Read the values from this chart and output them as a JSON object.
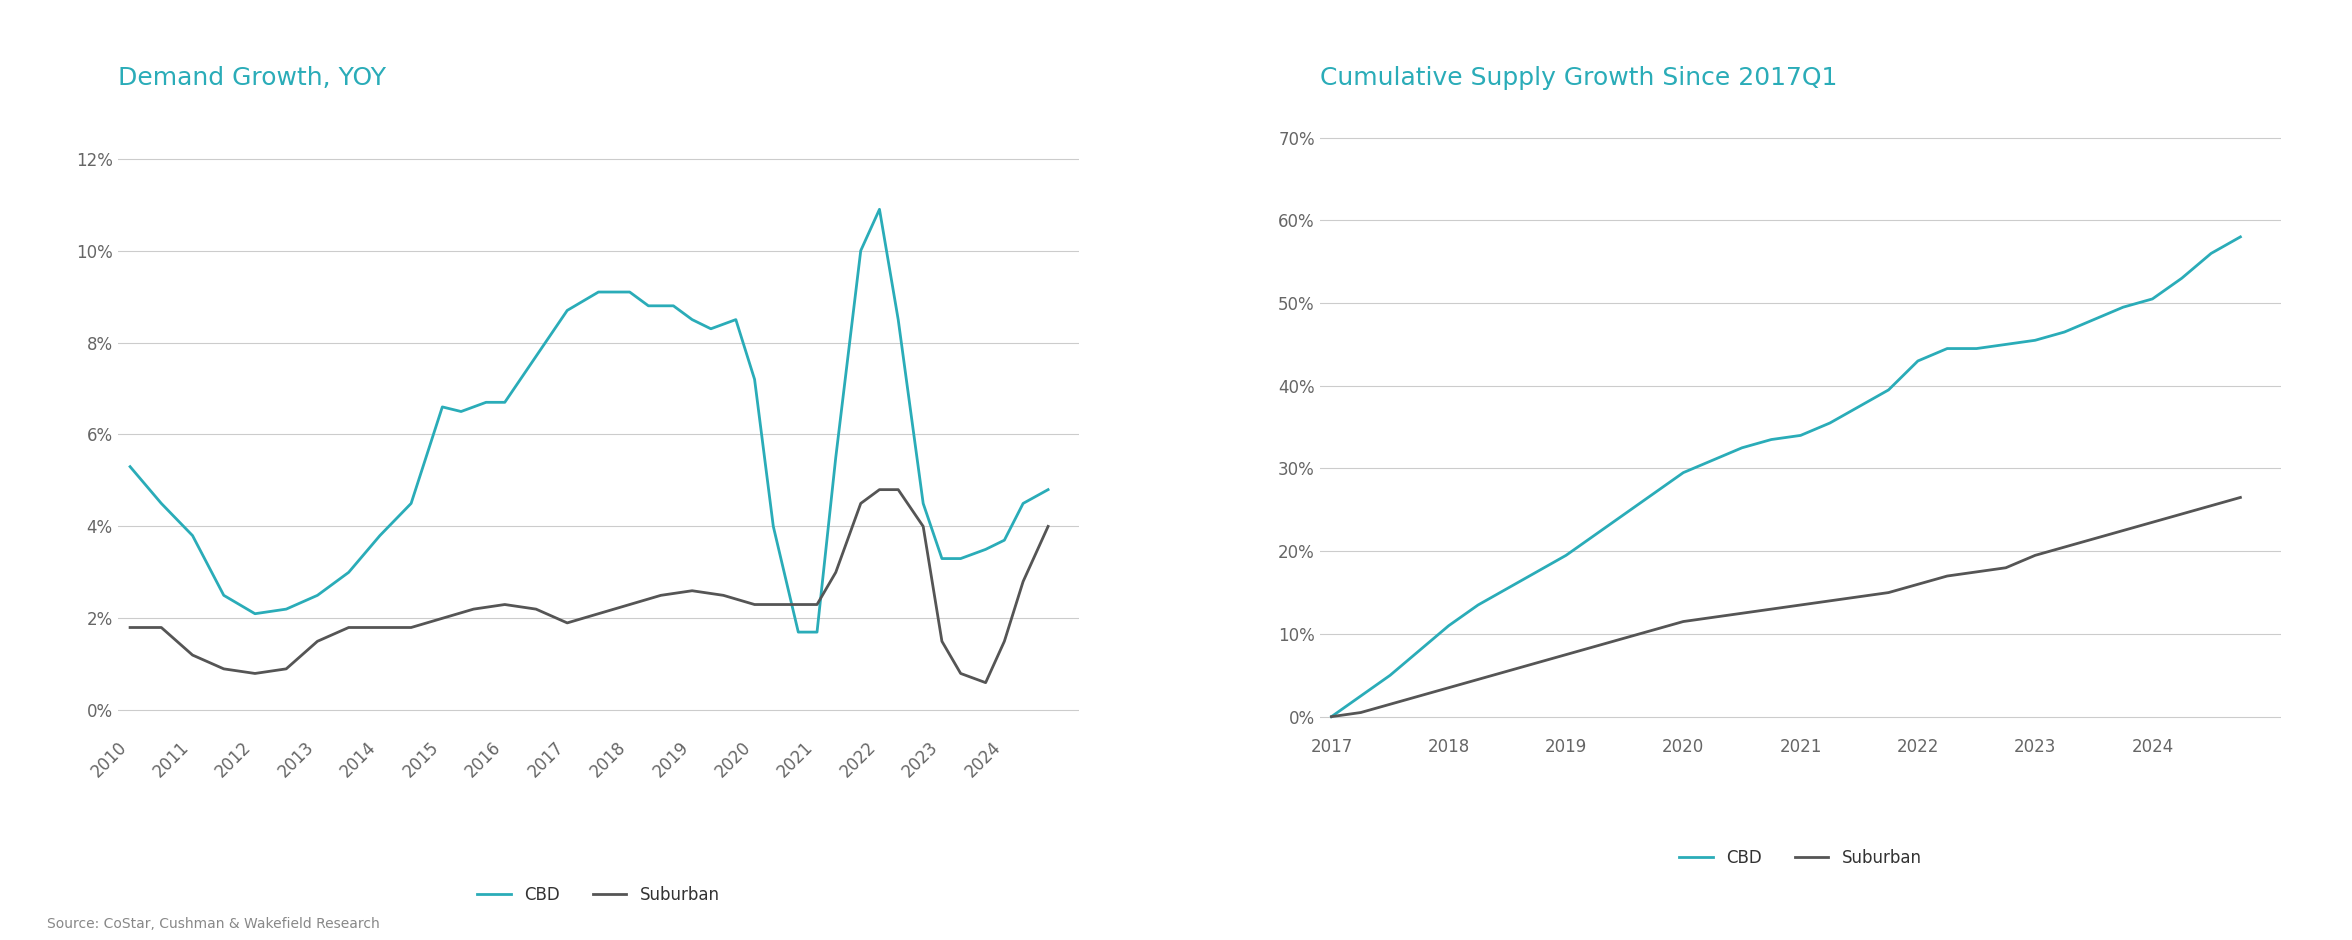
{
  "chart1": {
    "title": "Demand Growth, YOY",
    "cbd_x": [
      2010,
      2010.5,
      2011,
      2011.5,
      2012,
      2012.5,
      2013,
      2013.5,
      2014,
      2014.5,
      2015,
      2015.3,
      2015.7,
      2016,
      2016.5,
      2017,
      2017.5,
      2018,
      2018.3,
      2018.7,
      2019,
      2019.3,
      2019.7,
      2020,
      2020.3,
      2020.7,
      2021,
      2021.3,
      2021.7,
      2022,
      2022.3,
      2022.7,
      2023,
      2023.3,
      2023.7,
      2024,
      2024.3,
      2024.7
    ],
    "cbd_y": [
      5.3,
      4.5,
      3.8,
      2.5,
      2.1,
      2.2,
      2.5,
      3.0,
      3.8,
      4.5,
      6.6,
      6.5,
      6.7,
      6.7,
      7.7,
      8.7,
      9.1,
      9.1,
      8.8,
      8.8,
      8.5,
      8.3,
      8.5,
      7.2,
      4.0,
      1.7,
      1.7,
      5.5,
      10.0,
      10.9,
      8.5,
      4.5,
      3.3,
      3.3,
      3.5,
      3.7,
      4.5,
      4.8
    ],
    "sub_x": [
      2010,
      2010.5,
      2011,
      2011.5,
      2012,
      2012.5,
      2013,
      2013.5,
      2014,
      2014.5,
      2015,
      2015.5,
      2016,
      2016.5,
      2017,
      2017.5,
      2018,
      2018.5,
      2019,
      2019.5,
      2020,
      2020.3,
      2020.7,
      2021,
      2021.3,
      2021.7,
      2022,
      2022.3,
      2022.7,
      2023,
      2023.3,
      2023.7,
      2024,
      2024.3,
      2024.7
    ],
    "sub_y": [
      1.8,
      1.8,
      1.2,
      0.9,
      0.8,
      0.9,
      1.5,
      1.8,
      1.8,
      1.8,
      2.0,
      2.2,
      2.3,
      2.2,
      1.9,
      2.1,
      2.3,
      2.5,
      2.6,
      2.5,
      2.3,
      2.3,
      2.3,
      2.3,
      3.0,
      4.5,
      4.8,
      4.8,
      4.0,
      1.5,
      0.8,
      0.6,
      1.5,
      2.8,
      4.0
    ],
    "ylim": [
      -0.005,
      0.13
    ],
    "yticks": [
      0,
      0.02,
      0.04,
      0.06,
      0.08,
      0.1,
      0.12
    ],
    "xlim": [
      2009.8,
      2025.2
    ],
    "xticks": [
      2010,
      2011,
      2012,
      2013,
      2014,
      2015,
      2016,
      2017,
      2018,
      2019,
      2020,
      2021,
      2022,
      2023,
      2024
    ]
  },
  "chart2": {
    "title": "Cumulative Supply Growth Since 2017Q1",
    "cbd_x": [
      2017,
      2017.25,
      2017.5,
      2017.75,
      2018,
      2018.25,
      2018.5,
      2018.75,
      2019,
      2019.25,
      2019.5,
      2019.75,
      2020,
      2020.25,
      2020.5,
      2020.75,
      2021,
      2021.25,
      2021.5,
      2021.75,
      2022,
      2022.25,
      2022.5,
      2022.75,
      2023,
      2023.25,
      2023.5,
      2023.75,
      2024,
      2024.25,
      2024.5,
      2024.75
    ],
    "cbd_y": [
      0,
      2.5,
      5.0,
      8.0,
      11.0,
      13.5,
      15.5,
      17.5,
      19.5,
      22.0,
      24.5,
      27.0,
      29.5,
      31.0,
      32.5,
      33.5,
      34.0,
      35.5,
      37.5,
      39.5,
      43.0,
      44.5,
      44.5,
      45.0,
      45.5,
      46.5,
      48.0,
      49.5,
      50.5,
      53.0,
      56.0,
      58.0
    ],
    "sub_x": [
      2017,
      2017.25,
      2017.5,
      2017.75,
      2018,
      2018.25,
      2018.5,
      2018.75,
      2019,
      2019.25,
      2019.5,
      2019.75,
      2020,
      2020.25,
      2020.5,
      2020.75,
      2021,
      2021.25,
      2021.5,
      2021.75,
      2022,
      2022.25,
      2022.5,
      2022.75,
      2023,
      2023.25,
      2023.5,
      2023.75,
      2024,
      2024.25,
      2024.5,
      2024.75
    ],
    "sub_y": [
      0,
      0.5,
      1.5,
      2.5,
      3.5,
      4.5,
      5.5,
      6.5,
      7.5,
      8.5,
      9.5,
      10.5,
      11.5,
      12.0,
      12.5,
      13.0,
      13.5,
      14.0,
      14.5,
      15.0,
      16.0,
      17.0,
      17.5,
      18.0,
      19.5,
      20.5,
      21.5,
      22.5,
      23.5,
      24.5,
      25.5,
      26.5
    ],
    "ylim": [
      -2,
      73
    ],
    "yticks": [
      0,
      10,
      20,
      30,
      40,
      50,
      60,
      70
    ],
    "xlim": [
      2016.9,
      2025.1
    ],
    "xticks": [
      2017,
      2018,
      2019,
      2020,
      2021,
      2022,
      2023,
      2024
    ]
  },
  "cbd_color": "#2AACB8",
  "sub_color": "#555555",
  "title_color": "#2AACB8",
  "grid_color": "#cccccc",
  "bg_color": "#ffffff",
  "line_width": 2.0,
  "legend_labels": [
    "CBD",
    "Suburban"
  ],
  "source_text": "Source: CoStar, Cushman & Wakefield Research",
  "title_fontsize": 18,
  "label_fontsize": 12,
  "legend_fontsize": 12,
  "source_fontsize": 10
}
